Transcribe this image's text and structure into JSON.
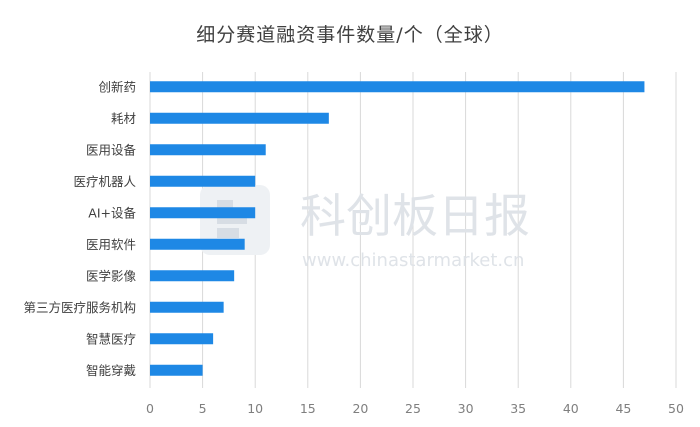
{
  "chart_data": {
    "type": "bar",
    "orientation": "horizontal",
    "title": "细分赛道融资事件数量/个（全球）",
    "categories": [
      "创新药",
      "耗材",
      "医用设备",
      "医疗机器人",
      "AI+设备",
      "医用软件",
      "医学影像",
      "第三方医疗服务机构",
      "智慧医疗",
      "智能穿戴"
    ],
    "values": [
      47,
      17,
      11,
      10,
      10,
      9,
      8,
      7,
      6,
      5
    ],
    "xlim": [
      0,
      50
    ],
    "xticks": [
      0,
      5,
      10,
      15,
      20,
      25,
      30,
      35,
      40,
      45,
      50
    ],
    "grid": true,
    "bar_color": "#1e88e5"
  },
  "watermark": {
    "brand": "科创板日报",
    "url": "www.chinastarmarket.cn"
  }
}
